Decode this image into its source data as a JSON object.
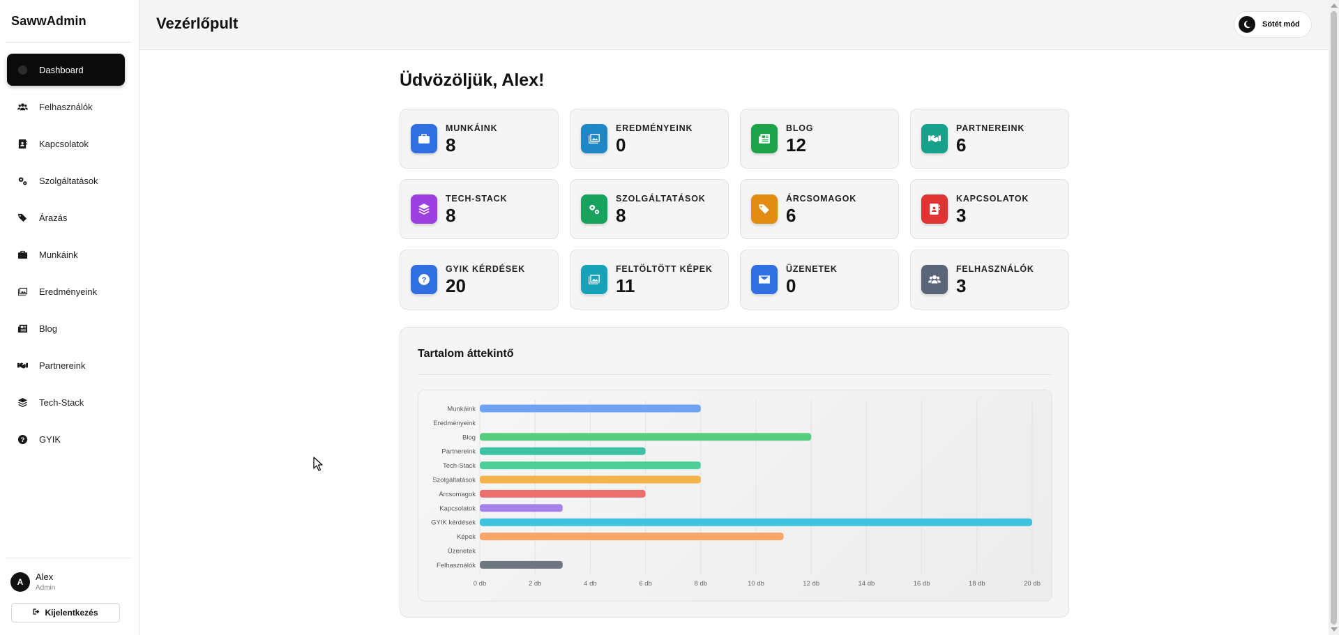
{
  "app": {
    "brand": "SawwAdmin"
  },
  "sidebar": {
    "items": [
      {
        "label": "Dashboard",
        "icon": "dashboard-icon",
        "active": true
      },
      {
        "label": "Felhasználók",
        "icon": "users-icon"
      },
      {
        "label": "Kapcsolatok",
        "icon": "contact-card-icon"
      },
      {
        "label": "Szolgáltatások",
        "icon": "gears-icon"
      },
      {
        "label": "Árazás",
        "icon": "tags-icon"
      },
      {
        "label": "Munkáink",
        "icon": "briefcase-icon"
      },
      {
        "label": "Eredményeink",
        "icon": "images-icon"
      },
      {
        "label": "Blog",
        "icon": "newspaper-icon"
      },
      {
        "label": "Partnereink",
        "icon": "handshake-icon"
      },
      {
        "label": "Tech-Stack",
        "icon": "layers-icon"
      },
      {
        "label": "GYIK",
        "icon": "question-icon"
      }
    ],
    "user": {
      "initial": "A",
      "name": "Alex",
      "role": "Admin"
    },
    "logout_label": "Kijelentkezés"
  },
  "header": {
    "title": "Vezérlőpult",
    "dark_mode_label": "Sötét mód"
  },
  "main": {
    "welcome": "Üdvözöljük, Alex!",
    "cards": [
      {
        "label": "MUNKÁINK",
        "value": "8",
        "icon": "briefcase-icon",
        "color": "#2f6fe0"
      },
      {
        "label": "EREDMÉNYEINK",
        "value": "0",
        "icon": "images-icon",
        "color": "#1e88c7"
      },
      {
        "label": "BLOG",
        "value": "12",
        "icon": "newspaper-icon",
        "color": "#1fa34a"
      },
      {
        "label": "PARTNEREINK",
        "value": "6",
        "icon": "handshake-icon",
        "color": "#17a08a"
      },
      {
        "label": "TECH-STACK",
        "value": "8",
        "icon": "layers-icon",
        "color": "#9b3fe0"
      },
      {
        "label": "SZOLGÁLTATÁSOK",
        "value": "8",
        "icon": "gears-icon",
        "color": "#17a35e"
      },
      {
        "label": "ÁRCSOMAGOK",
        "value": "6",
        "icon": "tags-icon",
        "color": "#e38c12"
      },
      {
        "label": "KAPCSOLATOK",
        "value": "3",
        "icon": "contact-card-icon",
        "color": "#e03434"
      },
      {
        "label": "GYIK KÉRDÉSEK",
        "value": "20",
        "icon": "question-icon",
        "color": "#2f6fe0"
      },
      {
        "label": "FELTÖLTÖTT KÉPEK",
        "value": "11",
        "icon": "upload-images-icon",
        "color": "#17a2b8"
      },
      {
        "label": "ÜZENETEK",
        "value": "0",
        "icon": "envelope-icon",
        "color": "#2f6fe0"
      },
      {
        "label": "FELHASZNÁLÓK",
        "value": "3",
        "icon": "users-icon",
        "color": "#5a6678"
      }
    ],
    "chart_title": "Tartalom áttekintő"
  },
  "chart_data": {
    "type": "bar",
    "orientation": "horizontal",
    "title": "Tartalom áttekintő",
    "categories": [
      "Munkáink",
      "Eredményeink",
      "Blog",
      "Partnereink",
      "Tech-Stack",
      "Szolgáltatások",
      "Árcsomagok",
      "Kapcsolatok",
      "GYIK kérdések",
      "Képek",
      "Üzenetek",
      "Felhasználók"
    ],
    "values": [
      8,
      0,
      12,
      6,
      8,
      8,
      6,
      3,
      20,
      11,
      0,
      3
    ],
    "colors": [
      "#6ea2f2",
      "#5b9ad6",
      "#58cc7e",
      "#3fc2a4",
      "#4ecf9a",
      "#f4b34a",
      "#ec6f6f",
      "#a582e8",
      "#3fc3dc",
      "#f9a66a",
      "#999999",
      "#6e7682"
    ],
    "xticks": [
      "0 db",
      "2 db",
      "4 db",
      "6 db",
      "8 db",
      "10 db",
      "12 db",
      "14 db",
      "16 db",
      "18 db",
      "20 db"
    ],
    "xlim": [
      0,
      20
    ],
    "grid": true
  }
}
